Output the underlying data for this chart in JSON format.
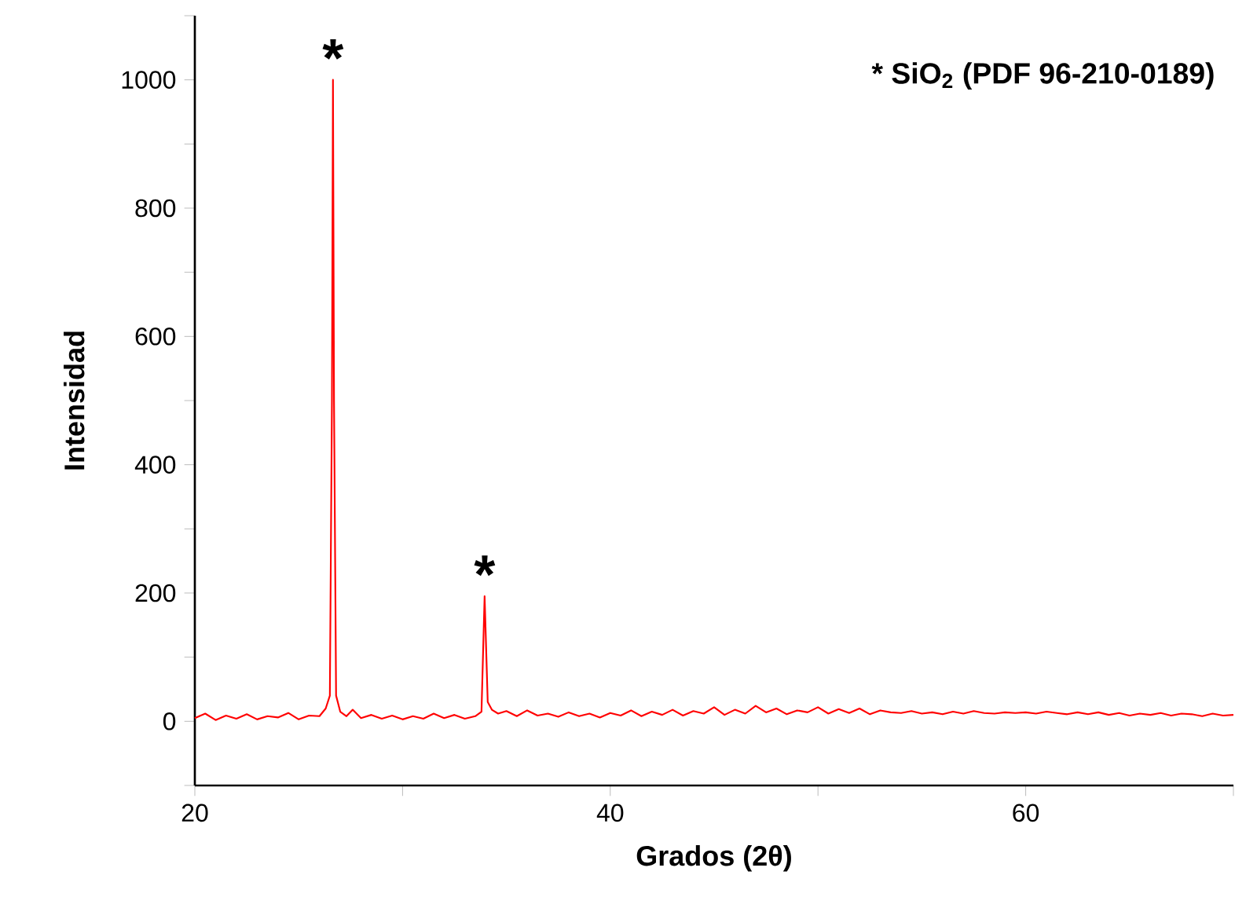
{
  "chart_data": {
    "type": "line",
    "xlabel": "Grados (2θ)",
    "ylabel": "Intensidad",
    "color": "#ff0000",
    "x": [
      20,
      20.5,
      21,
      21.5,
      22,
      22.5,
      23,
      23.5,
      24,
      24.5,
      25,
      25.5,
      26,
      26.3,
      26.5,
      26.6,
      26.65,
      26.7,
      26.8,
      27,
      27.3,
      27.6,
      28,
      28.5,
      29,
      29.5,
      30,
      30.5,
      31,
      31.5,
      32,
      32.5,
      33,
      33.5,
      33.8,
      33.95,
      34.1,
      34.3,
      34.6,
      35,
      35.5,
      36,
      36.5,
      37,
      37.5,
      38,
      38.5,
      39,
      39.5,
      40,
      40.5,
      41,
      41.5,
      42,
      42.5,
      43,
      43.5,
      44,
      44.5,
      45,
      45.5,
      46,
      46.5,
      47,
      47.5,
      48,
      48.5,
      49,
      49.5,
      50,
      50.5,
      51,
      51.5,
      52,
      52.5,
      53,
      53.5,
      54,
      54.5,
      55,
      55.5,
      56,
      56.5,
      57,
      57.5,
      58,
      58.5,
      59,
      59.5,
      60,
      60.5,
      61,
      61.5,
      62,
      62.5,
      63,
      63.5,
      64,
      64.5,
      65,
      65.5,
      66,
      66.5,
      67,
      67.5,
      68,
      68.5,
      69,
      69.5,
      70
    ],
    "values": [
      5,
      12,
      2,
      9,
      4,
      11,
      3,
      8,
      6,
      13,
      3,
      9,
      8,
      20,
      40,
      500,
      1000,
      500,
      40,
      15,
      8,
      18,
      5,
      10,
      4,
      9,
      3,
      8,
      4,
      12,
      5,
      10,
      4,
      8,
      15,
      195,
      30,
      18,
      12,
      16,
      8,
      17,
      9,
      12,
      7,
      14,
      8,
      12,
      6,
      13,
      9,
      17,
      8,
      15,
      10,
      18,
      9,
      16,
      12,
      22,
      10,
      18,
      12,
      24,
      14,
      20,
      11,
      17,
      14,
      22,
      12,
      19,
      13,
      20,
      11,
      17,
      14,
      13,
      16,
      12,
      14,
      11,
      15,
      12,
      16,
      13,
      12,
      14,
      13,
      14,
      12,
      15,
      13,
      11,
      14,
      11,
      14,
      10,
      13,
      9,
      12,
      10,
      13,
      9,
      12,
      11,
      8,
      12,
      9,
      10
    ],
    "xlim": [
      20,
      70
    ],
    "ylim": [
      -100,
      1100
    ],
    "xticks": [
      20,
      {
        "value": 30,
        "label": null
      },
      40,
      {
        "value": 50,
        "label": null
      },
      60,
      {
        "value": 70,
        "label": null
      }
    ],
    "yticks": [
      {
        "value": -100,
        "label": null
      },
      0,
      {
        "value": 100,
        "label": null
      },
      200,
      {
        "value": 300,
        "label": null
      },
      400,
      {
        "value": 500,
        "label": null
      },
      600,
      {
        "value": 700,
        "label": null
      },
      800,
      {
        "value": 900,
        "label": null
      },
      1000,
      {
        "value": 1100,
        "label": null
      }
    ],
    "annotations": [
      {
        "text": "*",
        "x": 26.65,
        "y": 1000
      },
      {
        "text": "*",
        "x": 33.95,
        "y": 195
      },
      "* SiO$_{2}$ (PDF 96-210-0189)"
    ]
  }
}
